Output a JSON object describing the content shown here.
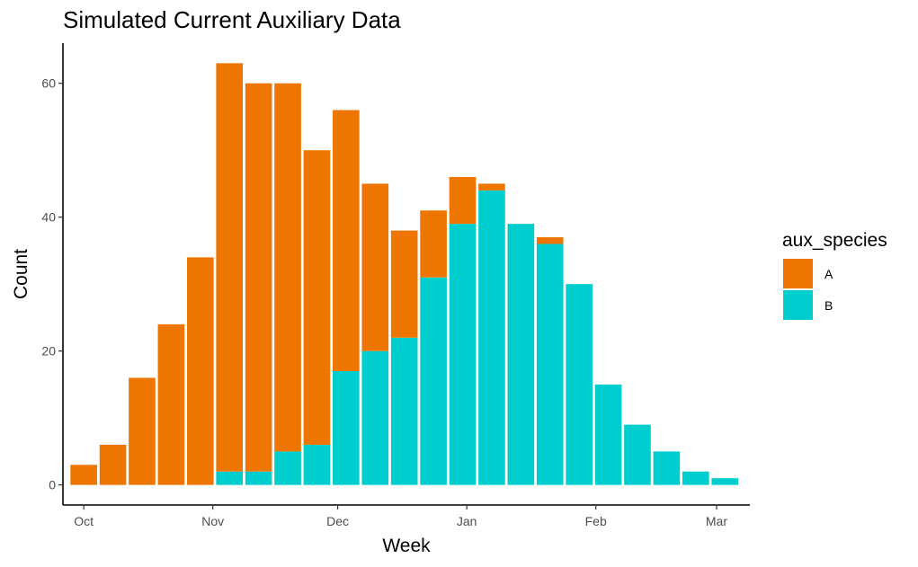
{
  "chart_data": {
    "type": "bar",
    "stacked": true,
    "title": "Simulated Current Auxiliary Data",
    "xlabel": "Week",
    "ylabel": "Count",
    "ylim": [
      0,
      66
    ],
    "yticks": [
      0,
      20,
      40,
      60
    ],
    "xticks": [
      {
        "label": "Oct",
        "date": "2023-10-01"
      },
      {
        "label": "Nov",
        "date": "2023-11-01"
      },
      {
        "label": "Dec",
        "date": "2023-12-01"
      },
      {
        "label": "Jan",
        "date": "2024-01-01"
      },
      {
        "label": "Feb",
        "date": "2024-02-01"
      },
      {
        "label": "Mar",
        "date": "2024-03-01"
      }
    ],
    "categories": [
      "2023-10-01",
      "2023-10-08",
      "2023-10-15",
      "2023-10-22",
      "2023-10-29",
      "2023-11-05",
      "2023-11-12",
      "2023-11-19",
      "2023-11-26",
      "2023-12-03",
      "2023-12-10",
      "2023-12-17",
      "2023-12-24",
      "2023-12-31",
      "2024-01-07",
      "2024-01-14",
      "2024-01-21",
      "2024-01-28",
      "2024-02-04",
      "2024-02-11",
      "2024-02-18",
      "2024-02-25",
      "2024-03-03"
    ],
    "series": [
      {
        "name": "A",
        "color": "#EE7600",
        "values": [
          3,
          6,
          16,
          24,
          34,
          61,
          58,
          55,
          44,
          39,
          25,
          16,
          10,
          7,
          1,
          0,
          1,
          0,
          0,
          0,
          0,
          0,
          0
        ]
      },
      {
        "name": "B",
        "color": "#00CDCD",
        "values": [
          0,
          0,
          0,
          0,
          0,
          2,
          2,
          5,
          6,
          17,
          20,
          22,
          31,
          39,
          44,
          39,
          36,
          30,
          15,
          9,
          5,
          2,
          1
        ]
      }
    ],
    "legend": {
      "title": "aux_species",
      "position": "right"
    },
    "grid": false
  }
}
